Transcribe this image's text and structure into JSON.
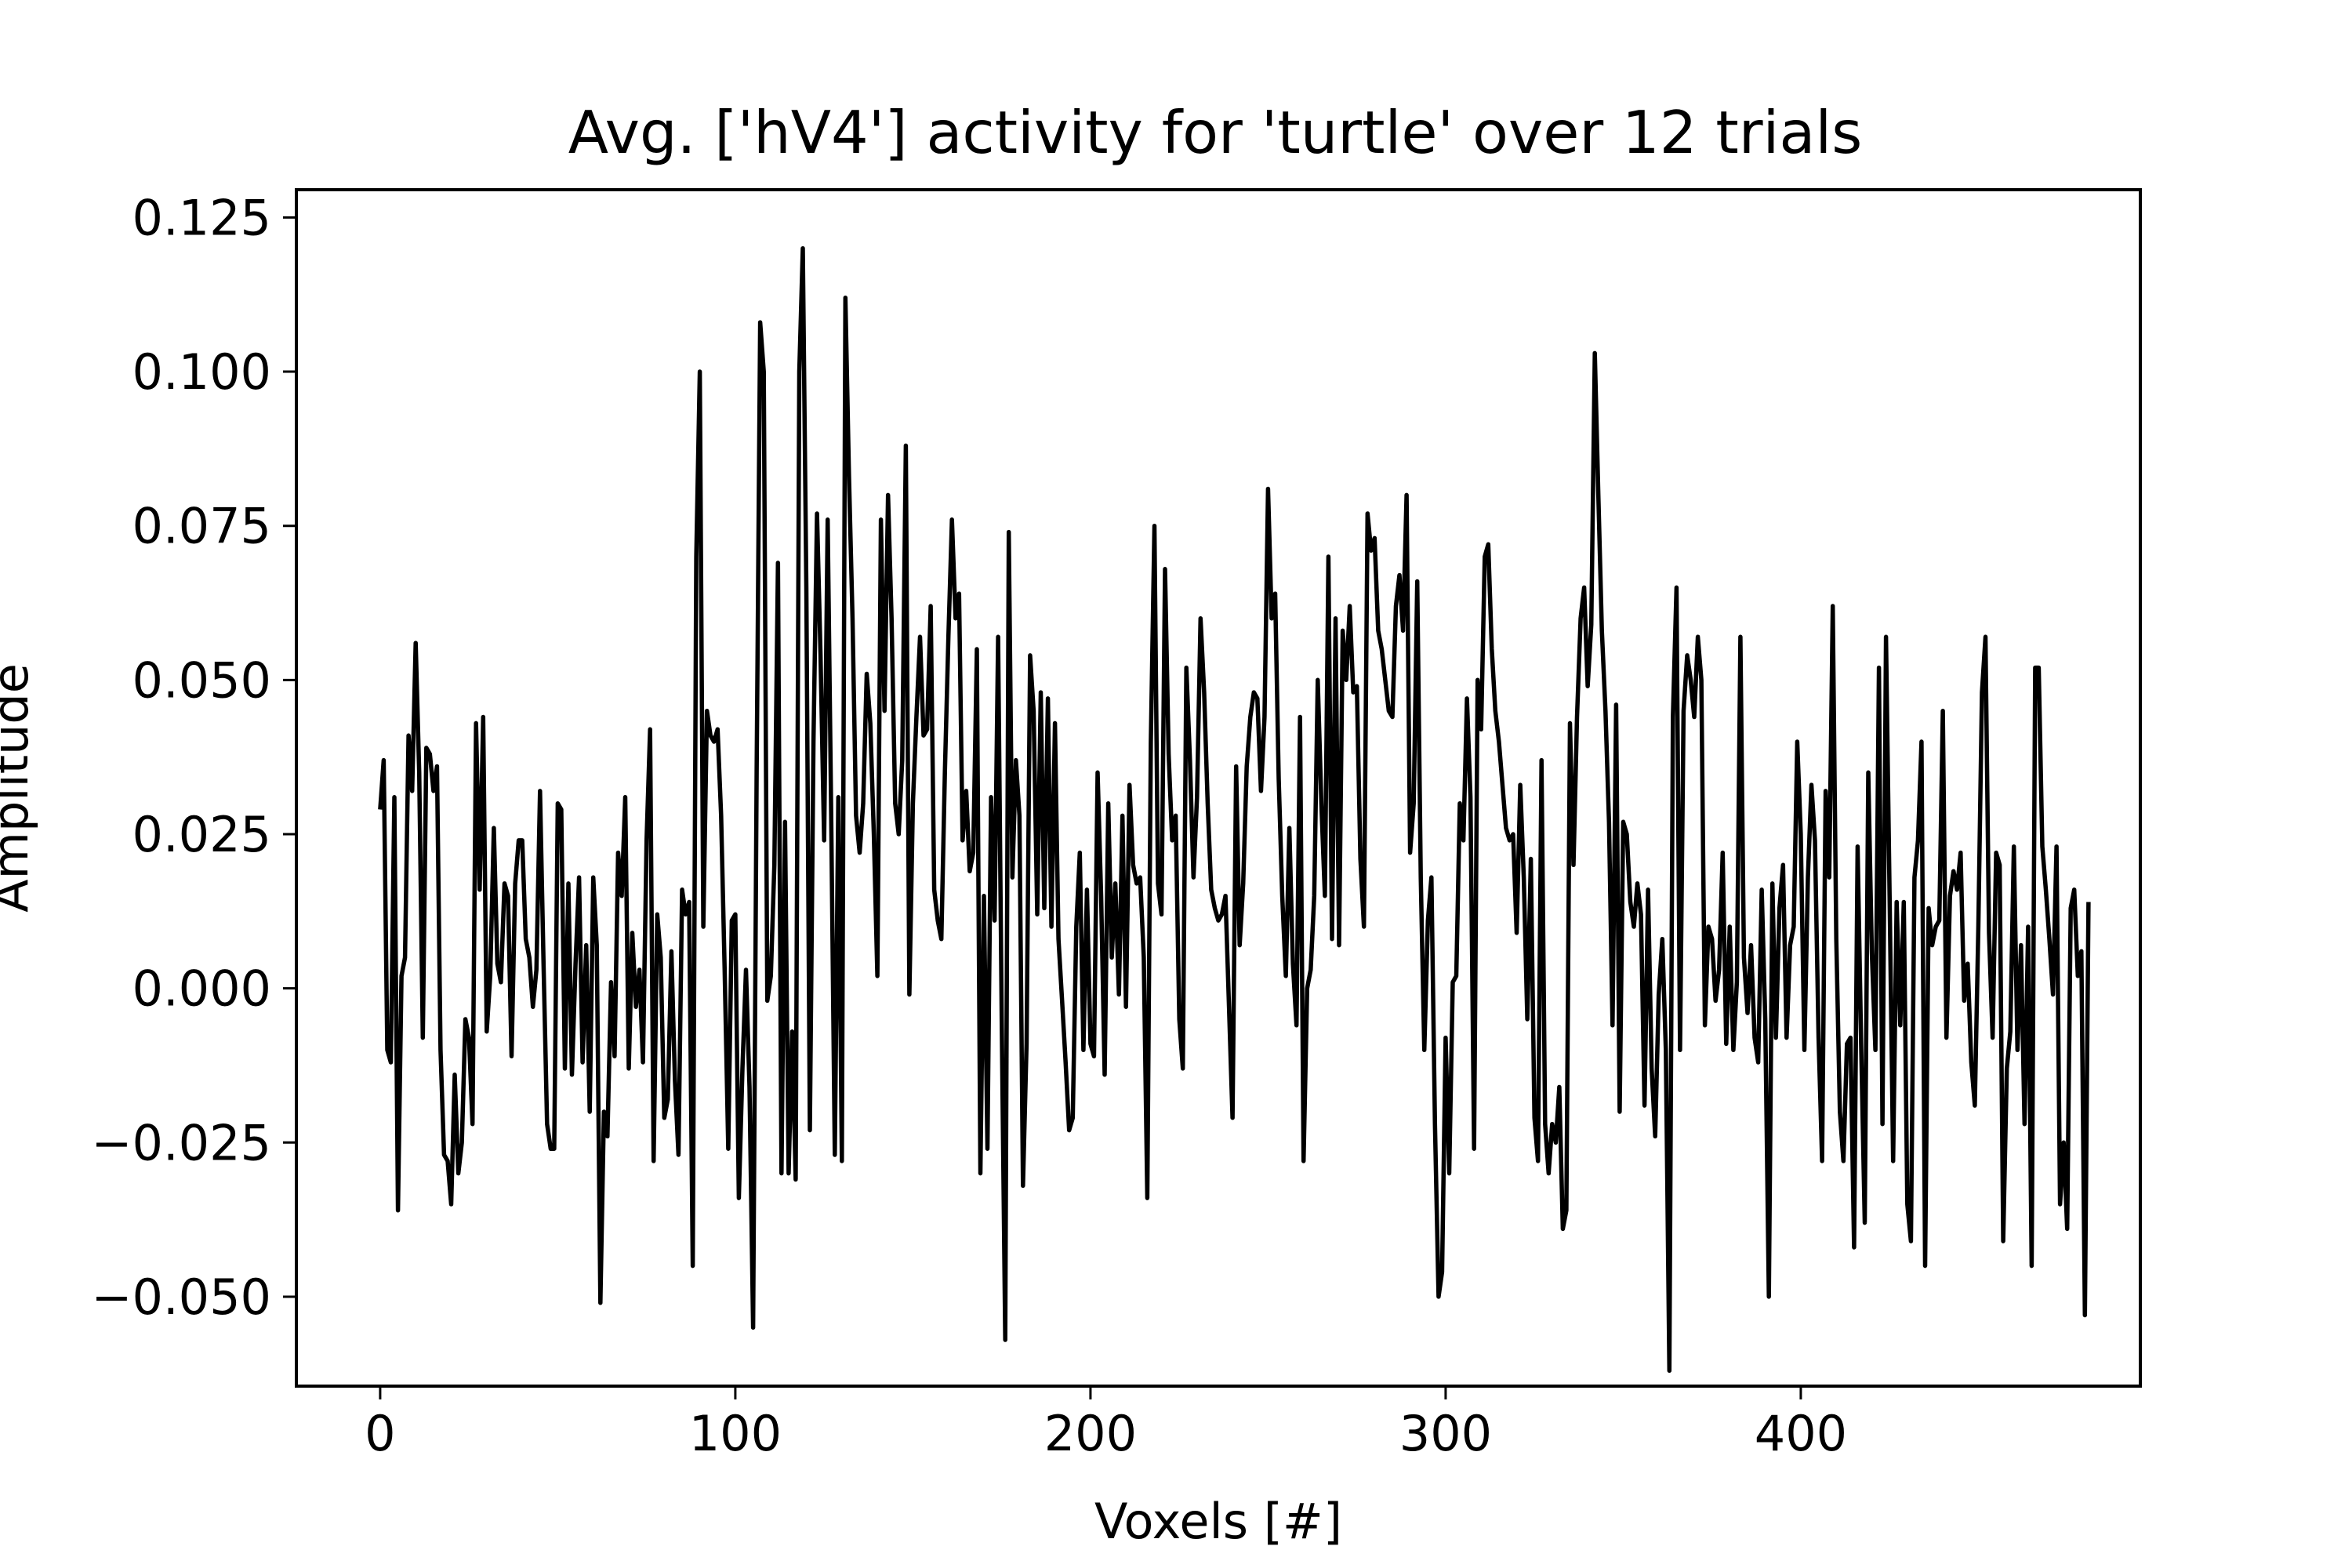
{
  "chart_data": {
    "type": "line",
    "title": "Avg. ['hV4'] activity for 'turtle' over 12 trials",
    "xlabel": "Voxels [#]",
    "ylabel": "Amplitude",
    "xlim": [
      -23.6,
      495.6
    ],
    "ylim": [
      -0.0645,
      0.1295
    ],
    "xticks": [
      0,
      100,
      200,
      300,
      400
    ],
    "xtick_labels": [
      "0",
      "100",
      "200",
      "300",
      "400"
    ],
    "yticks": [
      -0.05,
      -0.025,
      0.0,
      0.025,
      0.05,
      0.075,
      0.1,
      0.125
    ],
    "ytick_labels": [
      "−0.050",
      "−0.025",
      "0.000",
      "0.025",
      "0.050",
      "0.075",
      "0.100",
      "0.125"
    ],
    "grid": false,
    "line_color": "#000000",
    "series": [
      {
        "x_start": 0,
        "x_step": 1,
        "values": [
          0.029,
          0.037,
          -0.01,
          -0.012,
          0.031,
          -0.036,
          0.002,
          0.005,
          0.041,
          0.032,
          0.056,
          0.035,
          -0.008,
          0.039,
          0.038,
          0.032,
          0.036,
          -0.01,
          -0.027,
          -0.028,
          -0.035,
          -0.014,
          -0.03,
          -0.025,
          -0.005,
          -0.008,
          -0.022,
          0.043,
          0.016,
          0.044,
          -0.007,
          0.002,
          0.026,
          0.004,
          0.001,
          0.017,
          0.015,
          -0.011,
          0.017,
          0.024,
          0.024,
          0.008,
          0.005,
          -0.003,
          0.003,
          0.032,
          0.004,
          -0.022,
          -0.026,
          -0.026,
          0.03,
          0.029,
          -0.013,
          0.017,
          -0.014,
          0.004,
          0.018,
          -0.012,
          0.007,
          -0.02,
          0.018,
          0.007,
          -0.051,
          -0.02,
          -0.024,
          0.001,
          -0.011,
          0.022,
          0.015,
          0.031,
          -0.013,
          0.009,
          -0.003,
          0.003,
          -0.012,
          0.024,
          0.042,
          -0.028,
          0.012,
          0.005,
          -0.021,
          -0.018,
          0.006,
          -0.015,
          -0.027,
          0.016,
          0.012,
          0.014,
          -0.045,
          0.07,
          0.1,
          0.01,
          0.045,
          0.041,
          0.04,
          0.042,
          0.028,
          0.003,
          -0.026,
          0.011,
          0.012,
          -0.034,
          -0.013,
          0.003,
          -0.016,
          -0.055,
          0.035,
          0.108,
          0.1,
          -0.002,
          0.002,
          0.02,
          0.069,
          -0.03,
          0.027,
          -0.03,
          -0.007,
          -0.031,
          0.1,
          0.12,
          0.065,
          -0.023,
          0.04,
          0.077,
          0.054,
          0.024,
          0.076,
          0.028,
          -0.027,
          0.031,
          -0.028,
          0.112,
          0.083,
          0.06,
          0.028,
          0.022,
          0.03,
          0.051,
          0.043,
          0.025,
          0.002,
          0.076,
          0.045,
          0.08,
          0.06,
          0.03,
          0.025,
          0.037,
          0.088,
          -0.001,
          0.03,
          0.044,
          0.057,
          0.041,
          0.042,
          0.062,
          0.016,
          0.011,
          0.008,
          0.035,
          0.057,
          0.076,
          0.06,
          0.064,
          0.024,
          0.032,
          0.019,
          0.022,
          0.055,
          -0.03,
          0.015,
          -0.026,
          0.031,
          0.011,
          0.057,
          -0.005,
          -0.057,
          0.074,
          0.018,
          0.037,
          0.028,
          -0.032,
          -0.009,
          0.054,
          0.045,
          0.012,
          0.048,
          0.013,
          0.047,
          0.01,
          0.043,
          0.008,
          -0.002,
          -0.012,
          -0.023,
          -0.021,
          0.01,
          0.022,
          -0.01,
          0.016,
          -0.009,
          -0.011,
          0.035,
          0.015,
          -0.014,
          0.03,
          0.005,
          0.017,
          -0.001,
          0.028,
          -0.003,
          0.033,
          0.02,
          0.017,
          0.018,
          0.005,
          -0.034,
          0.04,
          0.075,
          0.017,
          0.012,
          0.068,
          0.038,
          0.024,
          0.028,
          -0.005,
          -0.013,
          0.052,
          0.037,
          0.018,
          0.031,
          0.06,
          0.048,
          0.03,
          0.016,
          0.013,
          0.011,
          0.012,
          0.015,
          -0.003,
          -0.021,
          0.036,
          0.007,
          0.017,
          0.036,
          0.044,
          0.048,
          0.047,
          0.032,
          0.044,
          0.081,
          0.06,
          0.064,
          0.034,
          0.015,
          0.002,
          0.026,
          0.004,
          -0.006,
          0.044,
          -0.028,
          0.0,
          0.003,
          0.015,
          0.05,
          0.03,
          0.015,
          0.07,
          0.008,
          0.06,
          0.007,
          0.058,
          0.05,
          0.062,
          0.048,
          0.049,
          0.021,
          0.01,
          0.077,
          0.071,
          0.073,
          0.058,
          0.055,
          0.05,
          0.045,
          0.044,
          0.062,
          0.067,
          0.058,
          0.08,
          0.022,
          0.03,
          0.066,
          0.018,
          -0.01,
          0.011,
          0.018,
          -0.022,
          -0.05,
          -0.046,
          -0.008,
          -0.03,
          0.001,
          0.002,
          0.03,
          0.024,
          0.047,
          0.031,
          -0.026,
          0.05,
          0.042,
          0.07,
          0.072,
          0.055,
          0.045,
          0.04,
          0.033,
          0.026,
          0.024,
          0.025,
          0.009,
          0.033,
          0.018,
          -0.005,
          0.021,
          -0.021,
          -0.028,
          0.037,
          -0.022,
          -0.03,
          -0.022,
          -0.025,
          -0.016,
          -0.039,
          -0.036,
          0.043,
          0.02,
          0.044,
          0.06,
          0.065,
          0.049,
          0.059,
          0.103,
          0.08,
          0.058,
          0.045,
          0.027,
          -0.006,
          0.046,
          -0.02,
          0.027,
          0.025,
          0.014,
          0.01,
          0.017,
          0.012,
          -0.019,
          0.016,
          -0.013,
          -0.024,
          -0.001,
          0.008,
          -0.01,
          -0.062,
          0.044,
          0.065,
          -0.01,
          0.045,
          0.054,
          0.05,
          0.044,
          0.057,
          0.05,
          -0.006,
          0.01,
          0.008,
          -0.002,
          0.003,
          0.022,
          -0.009,
          0.01,
          -0.01,
          0.001,
          0.057,
          0.005,
          -0.004,
          0.007,
          -0.008,
          -0.012,
          0.016,
          -0.005,
          -0.05,
          0.017,
          -0.008,
          0.013,
          0.02,
          -0.008,
          0.007,
          0.01,
          0.04,
          0.025,
          -0.01,
          0.018,
          0.033,
          0.024,
          -0.008,
          -0.028,
          0.032,
          0.018,
          0.062,
          0.008,
          -0.02,
          -0.028,
          -0.009,
          -0.008,
          -0.042,
          0.023,
          -0.009,
          -0.038,
          0.035,
          0.006,
          -0.01,
          0.052,
          -0.022,
          0.057,
          0.015,
          -0.028,
          0.014,
          -0.006,
          0.014,
          -0.035,
          -0.041,
          0.018,
          0.024,
          0.04,
          -0.045,
          0.013,
          0.007,
          0.01,
          0.011,
          0.045,
          -0.008,
          0.015,
          0.019,
          0.016,
          0.022,
          -0.002,
          0.004,
          -0.012,
          -0.019,
          0.01,
          0.048,
          0.057,
          0.009,
          -0.008,
          0.022,
          0.02,
          -0.041,
          -0.013,
          -0.007,
          0.023,
          -0.01,
          0.007,
          -0.022,
          0.01,
          -0.045,
          0.052,
          0.052,
          0.023,
          0.016,
          0.008,
          -0.001,
          0.023,
          -0.035,
          -0.025,
          -0.039,
          0.013,
          0.016,
          0.002,
          0.006,
          -0.053,
          0.014
        ]
      }
    ]
  }
}
